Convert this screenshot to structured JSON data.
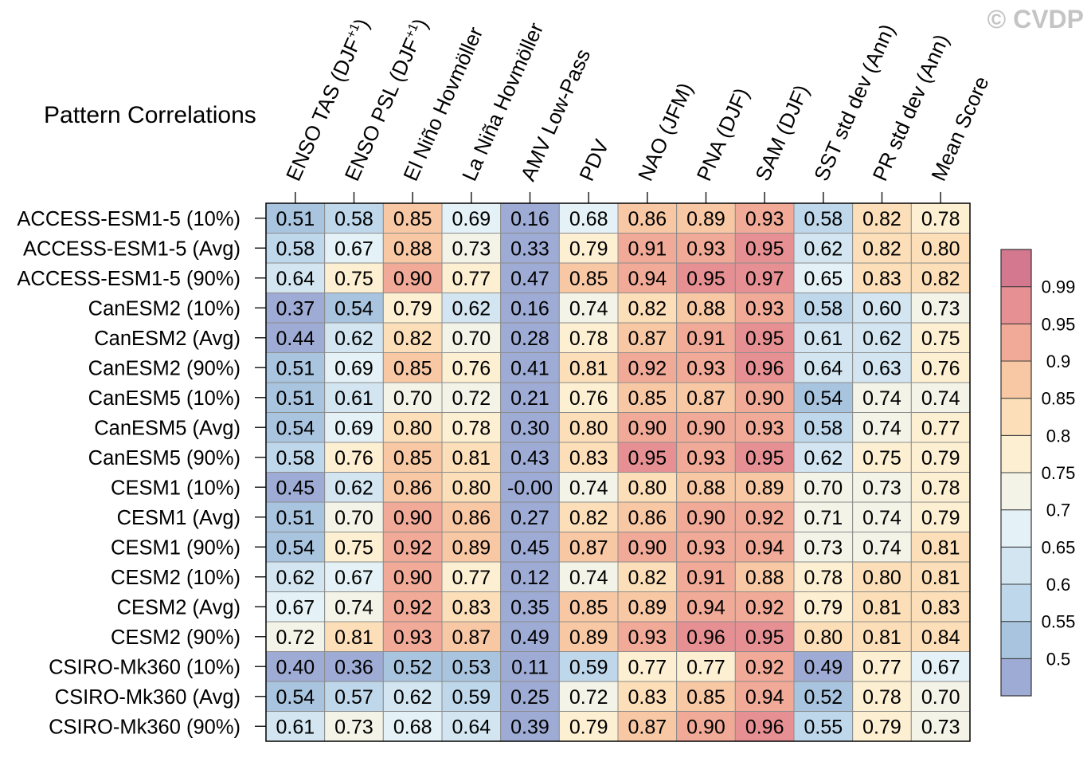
{
  "watermark": "© CVDP",
  "chart_data": {
    "type": "heatmap",
    "title": "Pattern Correlations",
    "columns": [
      {
        "text": "ENSO TAS (DJF",
        "sup": "+1",
        "suffix": ")"
      },
      {
        "text": "ENSO PSL (DJF",
        "sup": "+1",
        "suffix": ")"
      },
      {
        "text": "El Niño Hovmöller"
      },
      {
        "text": "La Niña Hovmöller"
      },
      {
        "text": "AMV Low-Pass"
      },
      {
        "text": "PDV"
      },
      {
        "text": "NAO (JFM)"
      },
      {
        "text": "PNA (DJF)"
      },
      {
        "text": "SAM (DJF)"
      },
      {
        "text": "SST std dev (Ann)"
      },
      {
        "text": "PR std dev (Ann)"
      },
      {
        "text": "Mean Score"
      }
    ],
    "rows": [
      "ACCESS-ESM1-5 (10%)",
      "ACCESS-ESM1-5 (Avg)",
      "ACCESS-ESM1-5 (90%)",
      "CanESM2 (10%)",
      "CanESM2 (Avg)",
      "CanESM2 (90%)",
      "CanESM5 (10%)",
      "CanESM5 (Avg)",
      "CanESM5 (90%)",
      "CESM1 (10%)",
      "CESM1 (Avg)",
      "CESM1 (90%)",
      "CESM2 (10%)",
      "CESM2 (Avg)",
      "CESM2 (90%)",
      "CSIRO-Mk360 (10%)",
      "CSIRO-Mk360 (Avg)",
      "CSIRO-Mk360 (90%)"
    ],
    "values": [
      [
        0.51,
        0.58,
        0.85,
        0.69,
        0.16,
        0.68,
        0.86,
        0.89,
        0.93,
        0.58,
        0.82,
        0.78
      ],
      [
        0.58,
        0.67,
        0.88,
        0.73,
        0.33,
        0.79,
        0.91,
        0.93,
        0.95,
        0.62,
        0.82,
        0.8
      ],
      [
        0.64,
        0.75,
        0.9,
        0.77,
        0.47,
        0.85,
        0.94,
        0.95,
        0.97,
        0.65,
        0.83,
        0.82
      ],
      [
        0.37,
        0.54,
        0.79,
        0.62,
        0.16,
        0.74,
        0.82,
        0.88,
        0.93,
        0.58,
        0.6,
        0.73
      ],
      [
        0.44,
        0.62,
        0.82,
        0.7,
        0.28,
        0.78,
        0.87,
        0.91,
        0.95,
        0.61,
        0.62,
        0.75
      ],
      [
        0.51,
        0.69,
        0.85,
        0.76,
        0.41,
        0.81,
        0.92,
        0.93,
        0.96,
        0.64,
        0.63,
        0.76
      ],
      [
        0.51,
        0.61,
        0.7,
        0.72,
        0.21,
        0.76,
        0.85,
        0.87,
        0.9,
        0.54,
        0.74,
        0.74
      ],
      [
        0.54,
        0.69,
        0.8,
        0.78,
        0.3,
        0.8,
        0.9,
        0.9,
        0.93,
        0.58,
        0.74,
        0.77
      ],
      [
        0.58,
        0.76,
        0.85,
        0.81,
        0.43,
        0.83,
        0.95,
        0.93,
        0.95,
        0.62,
        0.75,
        0.79
      ],
      [
        0.45,
        0.62,
        0.86,
        0.8,
        -0.0,
        0.74,
        0.8,
        0.88,
        0.89,
        0.7,
        0.73,
        0.78
      ],
      [
        0.51,
        0.7,
        0.9,
        0.86,
        0.27,
        0.82,
        0.86,
        0.9,
        0.92,
        0.71,
        0.74,
        0.79
      ],
      [
        0.54,
        0.75,
        0.92,
        0.89,
        0.45,
        0.87,
        0.9,
        0.93,
        0.94,
        0.73,
        0.74,
        0.81
      ],
      [
        0.62,
        0.67,
        0.9,
        0.77,
        0.12,
        0.74,
        0.82,
        0.91,
        0.88,
        0.78,
        0.8,
        0.81
      ],
      [
        0.67,
        0.74,
        0.92,
        0.83,
        0.35,
        0.85,
        0.89,
        0.94,
        0.92,
        0.79,
        0.81,
        0.83
      ],
      [
        0.72,
        0.81,
        0.93,
        0.87,
        0.49,
        0.89,
        0.93,
        0.96,
        0.95,
        0.8,
        0.81,
        0.84
      ],
      [
        0.4,
        0.36,
        0.52,
        0.53,
        0.11,
        0.59,
        0.77,
        0.77,
        0.92,
        0.49,
        0.77,
        0.67
      ],
      [
        0.54,
        0.57,
        0.62,
        0.59,
        0.25,
        0.72,
        0.83,
        0.85,
        0.94,
        0.52,
        0.78,
        0.7
      ],
      [
        0.61,
        0.73,
        0.68,
        0.64,
        0.39,
        0.79,
        0.87,
        0.9,
        0.96,
        0.55,
        0.79,
        0.73
      ]
    ],
    "colorbar": {
      "placement": "right",
      "levels": [
        0.5,
        0.55,
        0.6,
        0.65,
        0.7,
        0.75,
        0.8,
        0.85,
        0.9,
        0.95,
        0.99
      ],
      "colors": [
        "#9eabd4",
        "#a8c4df",
        "#bed7ea",
        "#d2e5f0",
        "#e4f1f6",
        "#f3f3e8",
        "#fdefd2",
        "#fcdfb8",
        "#f8c8a4",
        "#f1aa97",
        "#e79093",
        "#d4788f"
      ]
    }
  }
}
